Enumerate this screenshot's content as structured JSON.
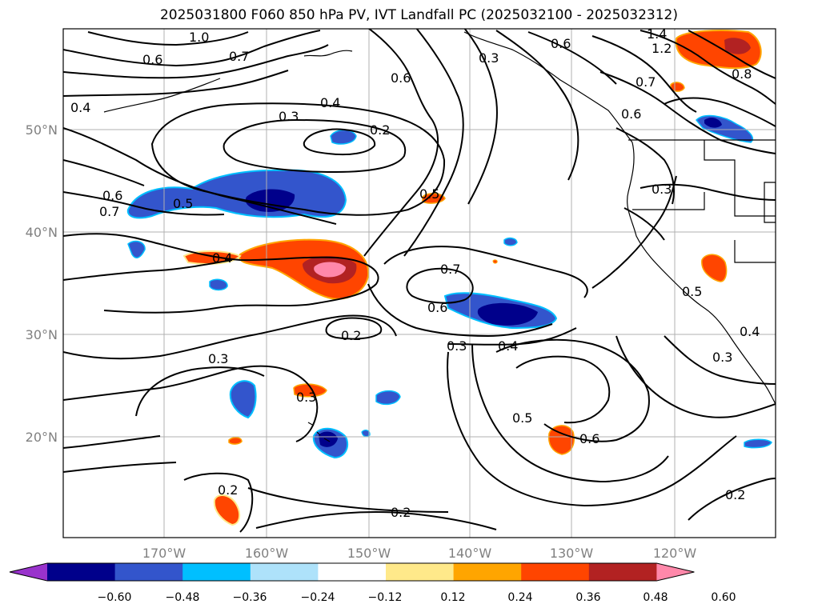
{
  "title": "2025031800 F060 850 hPa PV, IVT Landfall PC (2025032100 - 2025032312)",
  "map": {
    "lat_labels": [
      "50°N",
      "40°N",
      "30°N",
      "20°N"
    ],
    "lon_labels": [
      "170°W",
      "160°W",
      "150°W",
      "140°W",
      "130°W",
      "120°W"
    ],
    "contour_labels": [
      "1.0",
      "0.6",
      "0.7",
      "0.6",
      "0.6",
      "0.3",
      "0.4",
      "0.4",
      "0.3",
      "0.2",
      "0.6",
      "0.7",
      "0.5",
      "0.5",
      "0.4",
      "0.7",
      "0.6",
      "0.3",
      "0.4",
      "0.2",
      "0.3",
      "0.3",
      "0.5",
      "0.6",
      "0.2",
      "0.2",
      "0.2",
      "1.4",
      "1.2",
      "0.7",
      "0.8",
      "0.6",
      "0.3",
      "0.5",
      "0.3",
      "0.4"
    ]
  },
  "colorbar": {
    "tick_labels": [
      "−0.60",
      "−0.48",
      "−0.36",
      "−0.24",
      "−0.12",
      "0.12",
      "0.24",
      "0.36",
      "0.48",
      "0.60"
    ],
    "colors": [
      "#9933cc",
      "#00008b",
      "#3355cc",
      "#00bfff",
      "#aee2fa",
      "#ffffff",
      "#ffe98a",
      "#ffa500",
      "#ff4500",
      "#b22222",
      "#ff88aa"
    ]
  }
}
